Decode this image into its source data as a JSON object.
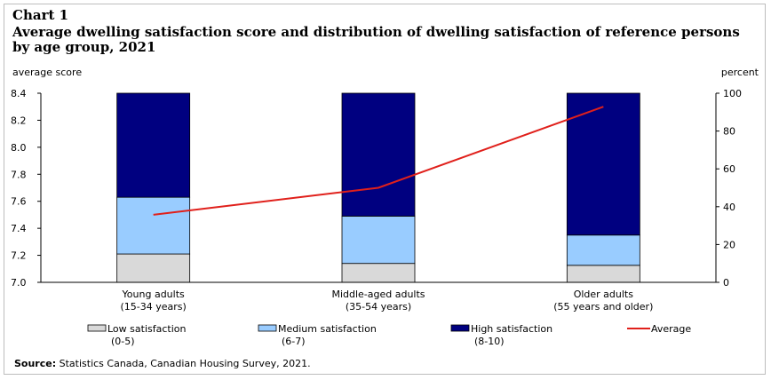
{
  "chart_label": "Chart 1",
  "title": "Average dwelling  satisfaction score and distribution  of dwelling  satisfaction of reference persons by age group, 2021",
  "source_label": "Source:",
  "source_text": "Statistics Canada, Canadian Housing Survey, 2021.",
  "chart_data": {
    "type": "bar",
    "stacked": true,
    "title": "Average dwelling satisfaction score and distribution of dwelling satisfaction of reference persons by age group, 2021",
    "categories": [
      [
        "Young adults",
        "(15-34  years)"
      ],
      [
        "Middle-aged adults",
        "(35-54 years)"
      ],
      [
        "Older adults",
        "(55 years and older)"
      ]
    ],
    "left_axis": {
      "label": "average score",
      "min": 7.0,
      "max": 8.4,
      "ticks": [
        "7.0",
        "7.2",
        "7.4",
        "7.6",
        "7.8",
        "8.0",
        "8.2",
        "8.4"
      ]
    },
    "right_axis": {
      "label": "percent",
      "min": 0,
      "max": 100,
      "ticks": [
        "0",
        "20",
        "40",
        "60",
        "80",
        "100"
      ]
    },
    "series": [
      {
        "name": "Low satisfaction",
        "sub": "(0-5)",
        "axis": "right",
        "type": "bar",
        "color": "#d9d9d9",
        "values": [
          15,
          10,
          9
        ]
      },
      {
        "name": "Medium satisfaction",
        "sub": "(6-7)",
        "axis": "right",
        "type": "bar",
        "color": "#99ccff",
        "values": [
          30,
          25,
          16
        ]
      },
      {
        "name": "High satisfaction",
        "sub": "(8-10)",
        "axis": "right",
        "type": "bar",
        "color": "#000080",
        "values": [
          55,
          65,
          75
        ]
      },
      {
        "name": "Average",
        "sub": "",
        "axis": "left",
        "type": "line",
        "color": "#e0201b",
        "values": [
          7.5,
          7.7,
          8.3
        ]
      }
    ],
    "grid": false,
    "legend_position": "bottom"
  }
}
